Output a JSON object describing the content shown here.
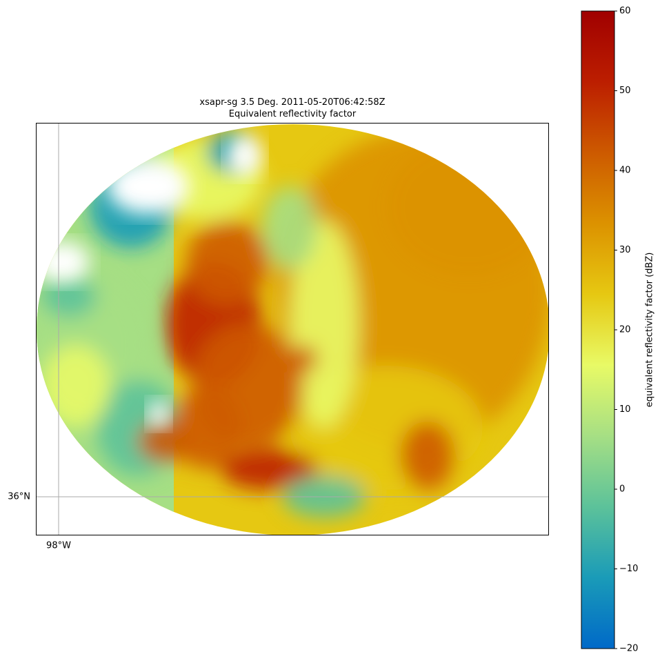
{
  "chart_data": {
    "type": "radar-ppi",
    "title": "xsapr-sg 3.5 Deg. 2011-05-20T06:42:58Z",
    "subtitle": "Equivalent reflectivity factor",
    "colorbar": {
      "label": "equivalent reflectivity factor (dBZ)",
      "lim": [
        -20,
        60
      ],
      "ticks": [
        {
          "value": -20,
          "label": "−20"
        },
        {
          "value": -10,
          "label": "−10"
        },
        0,
        10,
        20,
        30,
        40,
        50,
        60
      ],
      "colormap": [
        "#0069c8",
        "#1a9bb8",
        "#5cc29a",
        "#a6df84",
        "#e8fa66",
        "#e6c812",
        "#dc9200",
        "#cd5a00",
        "#bc1e00",
        "#a00000"
      ]
    },
    "gridlines": {
      "lat": [
        {
          "value": 36,
          "label": "36°N"
        }
      ],
      "lon": [
        {
          "value": -98,
          "label": "98°W"
        }
      ]
    }
  }
}
